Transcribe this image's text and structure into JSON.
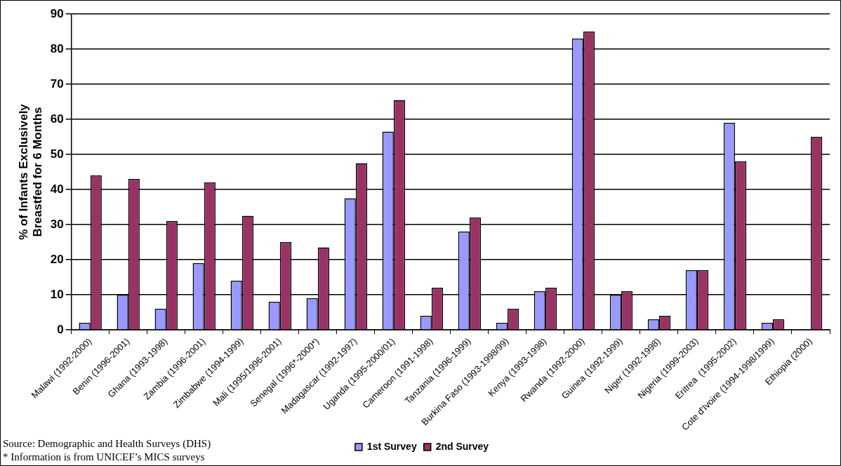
{
  "chart_data": {
    "type": "bar",
    "ylabel": "% of Infants Exclusively Breastfed for 6 Months",
    "categories": [
      "Malawi (1992-2000)",
      "Benin (1996-2001)",
      "Ghana (1993-1998)",
      "Zambia (1996-2001)",
      "Zimbabwe (1994-1999)",
      "Mali (1995/1996-2001)",
      "Senegal (1996*-2000*)",
      "Madagascar (1992-1997)",
      "Uganda (1995-2000/01)",
      "Cameroon (1991-1998)",
      "Tanzania (1996-1999)",
      "Burkina Faso (1993-1998/99)",
      "Kenya (1993-1998)",
      "Rwanda (1992-2000)",
      "Guinea (1992-1999)",
      "Niger (1992-1998)",
      "Nigeria (1999-2003)",
      "Eritrea  (1995-2002)",
      "Cote d'Ivoire (1994-1998/1999)",
      "Ethiopia (2000)"
    ],
    "series": [
      {
        "name": "1st Survey",
        "color": "#9999ff",
        "values": [
          2,
          10,
          6,
          19,
          14,
          8,
          9,
          37.5,
          56.5,
          4,
          28,
          2,
          11,
          83,
          10,
          3,
          17,
          59,
          2,
          null
        ]
      },
      {
        "name": "2nd Survey",
        "color": "#993366",
        "values": [
          44,
          43,
          31,
          42,
          32.5,
          25,
          23.5,
          47.5,
          65.5,
          12,
          32,
          6,
          12,
          85,
          11,
          4,
          17,
          48,
          3,
          55
        ]
      }
    ],
    "ylim": [
      0,
      90
    ],
    "yticks": [
      0,
      10,
      20,
      30,
      40,
      50,
      60,
      70,
      80,
      90
    ],
    "grid": "y",
    "legend": "bottom",
    "annotations": [
      "Source: Demographic and Health Surveys (DHS)",
      "* Information is from UNICEF’s MICS surveys"
    ]
  }
}
